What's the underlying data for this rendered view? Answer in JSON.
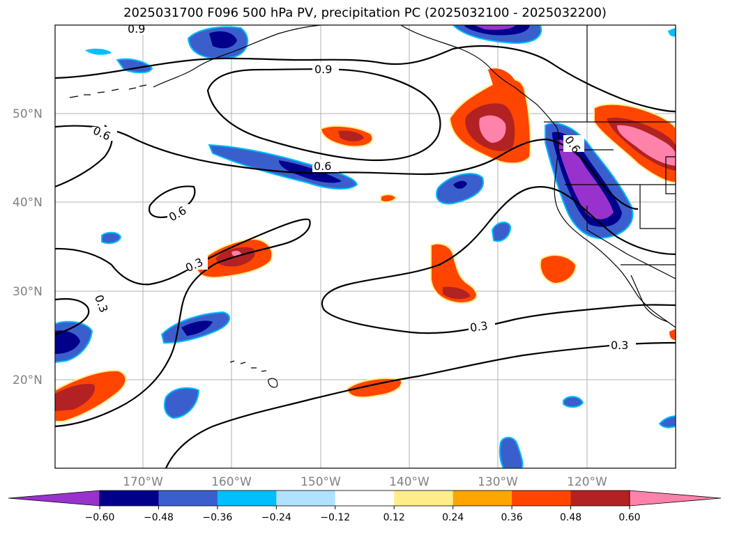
{
  "title": "2025031700 F096 500 hPa PV, precipitation PC (2025032100 - 2025032200)",
  "map": {
    "lat_labels": [
      "50°N",
      "40°N",
      "30°N",
      "20°N"
    ],
    "lon_labels": [
      "170°W",
      "160°W",
      "150°W",
      "140°W",
      "130°W",
      "120°W"
    ],
    "contour_labels": [
      "0.9",
      "0.9",
      "0.6",
      "0.6",
      "0.6",
      "0.6",
      "0.3",
      "0.3",
      "0.3",
      "0.3"
    ]
  },
  "colorbar": {
    "colors": [
      "#9932cc",
      "#00008b",
      "#3a5fcd",
      "#00bfff",
      "#b0e2ff",
      "#ffffff",
      "#ffec8b",
      "#ffa500",
      "#ff4500",
      "#b22222",
      "#ff82ab"
    ],
    "ticks": [
      "−0.60",
      "−0.48",
      "−0.36",
      "−0.24",
      "−0.12",
      "0.12",
      "0.24",
      "0.36",
      "0.48",
      "0.60"
    ]
  }
}
